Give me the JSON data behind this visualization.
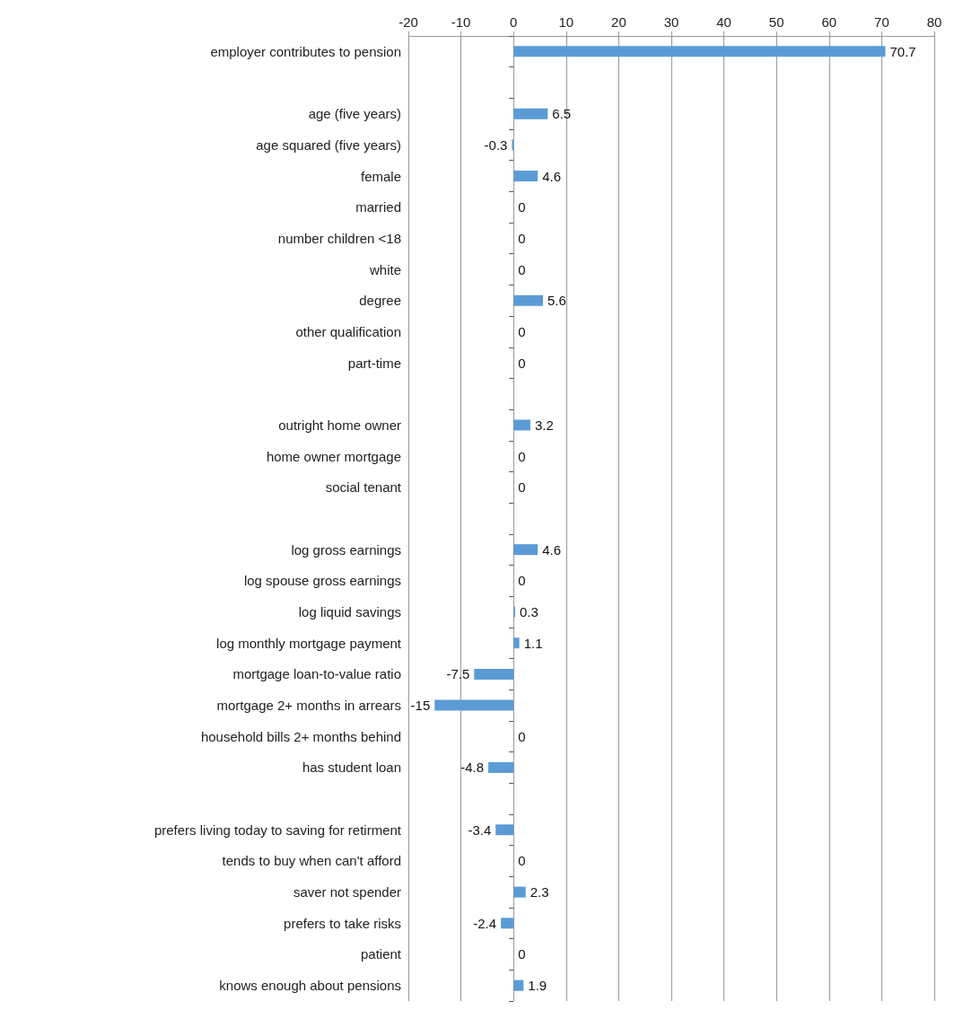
{
  "chart_data": {
    "type": "bar",
    "orientation": "horizontal",
    "categories": [
      "employer contributes to pension",
      null,
      "age (five years)",
      "age squared (five years)",
      "female",
      "married",
      "number children <18",
      "white",
      "degree",
      "other qualification",
      "part-time",
      null,
      "outright home owner",
      "home owner mortgage",
      "social tenant",
      null,
      "log gross earnings",
      "log spouse gross earnings",
      "log liquid savings",
      "log monthly mortgage payment",
      "mortgage loan-to-value ratio",
      "mortgage 2+ months in arrears",
      "household bills 2+ months behind",
      "has student loan",
      null,
      "prefers living today to saving for retirment",
      "tends to buy when can't afford",
      "saver not spender",
      "prefers to take risks",
      "patient",
      "knows enough about pensions"
    ],
    "values": [
      70.7,
      null,
      6.5,
      -0.3,
      4.6,
      0,
      0,
      0,
      5.6,
      0,
      0,
      null,
      3.2,
      0,
      0,
      null,
      4.6,
      0,
      0.3,
      1.1,
      -7.5,
      -15,
      0,
      -4.8,
      null,
      -3.4,
      0,
      2.3,
      -2.4,
      0,
      1.9
    ],
    "color": "#5b9bd5",
    "xlim": [
      -20,
      80
    ],
    "xticks": [
      -20,
      -10,
      0,
      10,
      20,
      30,
      40,
      50,
      60,
      70,
      80
    ],
    "grid": "x",
    "data_labels": true
  }
}
